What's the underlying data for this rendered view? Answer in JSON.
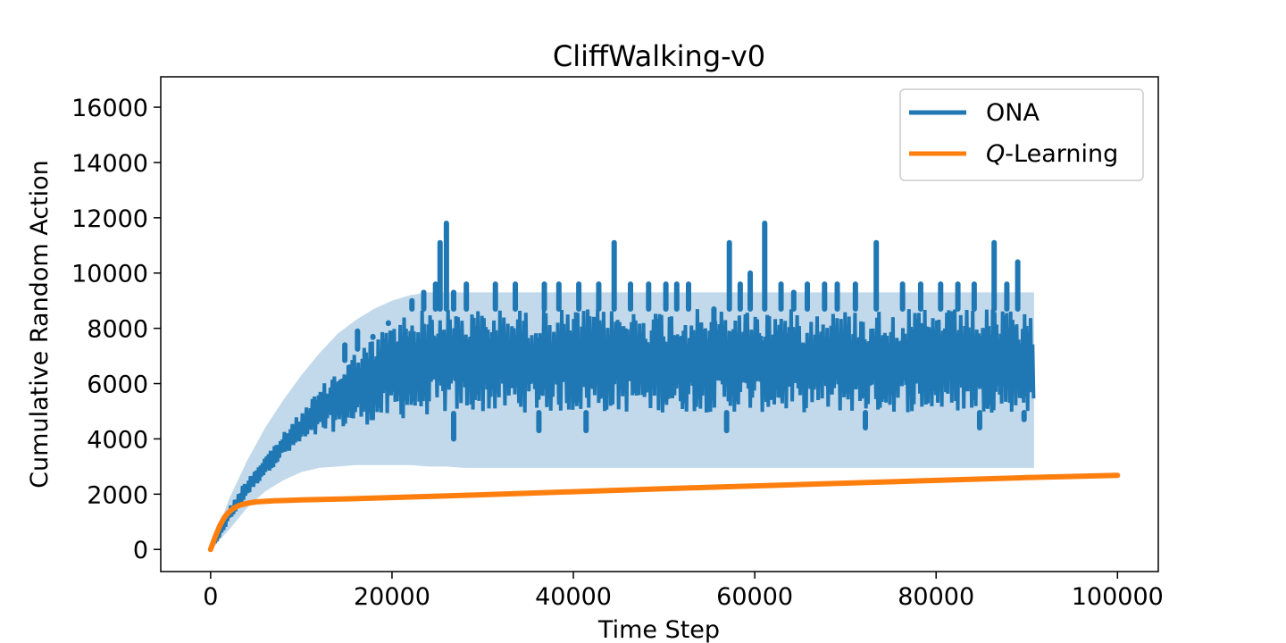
{
  "chart_data": {
    "type": "line",
    "title": "CliffWalking-v0",
    "xlabel": "Time Step",
    "ylabel": "Cumulative Random Action",
    "xlim": [
      -5500,
      104500
    ],
    "ylim": [
      -800,
      17100
    ],
    "xticks": [
      0,
      20000,
      40000,
      60000,
      80000,
      100000
    ],
    "xtick_labels": [
      "0",
      "20000",
      "40000",
      "60000",
      "80000",
      "100000"
    ],
    "yticks": [
      0,
      2000,
      4000,
      6000,
      8000,
      10000,
      12000,
      14000,
      16000
    ],
    "ytick_labels": [
      "0",
      "2000",
      "4000",
      "6000",
      "8000",
      "10000",
      "12000",
      "14000",
      "16000"
    ],
    "grid": false,
    "legend_position": "top-right",
    "series": [
      {
        "name": "ONA",
        "color": "#1f77b4",
        "band_color": "#1f77b4",
        "x": [
          0,
          2000,
          4000,
          6000,
          8000,
          10000,
          12000,
          14000,
          16000,
          18000,
          20000,
          22000,
          24000,
          26000,
          28000,
          30000,
          35000,
          40000,
          45000,
          50000,
          55000,
          60000,
          65000,
          70000,
          75000,
          80000,
          85000,
          90000,
          90800
        ],
        "low": [
          0,
          950,
          1900,
          2700,
          3300,
          3800,
          4100,
          4300,
          4450,
          4550,
          4650,
          4750,
          4850,
          4900,
          4950,
          4950,
          4950,
          4950,
          4950,
          4950,
          4950,
          4950,
          4950,
          4950,
          4950,
          4950,
          4950,
          4950,
          4950
        ],
        "high": [
          0,
          1500,
          2600,
          3400,
          4200,
          5000,
          5800,
          6600,
          7200,
          7700,
          8300,
          8700,
          8700,
          8700,
          8700,
          8700,
          8700,
          8700,
          8700,
          8700,
          8700,
          8700,
          8700,
          8700,
          8700,
          8700,
          8700,
          8700,
          8700
        ],
        "band_low": [
          0,
          700,
          1500,
          2100,
          2500,
          2800,
          2950,
          3000,
          3050,
          3050,
          3050,
          3050,
          3000,
          3000,
          2950,
          2950,
          2950,
          2950,
          2950,
          2950,
          2950,
          2950,
          2950,
          2950,
          2950,
          2950,
          2950,
          2950,
          2950
        ],
        "band_high": [
          0,
          1800,
          3200,
          4400,
          5400,
          6300,
          7100,
          7800,
          8300,
          8700,
          9000,
          9200,
          9300,
          9300,
          9300,
          9300,
          9300,
          9300,
          9300,
          9300,
          9300,
          9300,
          9300,
          9300,
          9300,
          9300,
          9300,
          9300,
          9300
        ],
        "spikes": [
          {
            "x": 14800,
            "y": 7400
          },
          {
            "x": 16200,
            "y": 7900
          },
          {
            "x": 17900,
            "y": 7700
          },
          {
            "x": 19600,
            "y": 8200
          },
          {
            "x": 22200,
            "y": 9000
          },
          {
            "x": 23500,
            "y": 9300
          },
          {
            "x": 24800,
            "y": 9600
          },
          {
            "x": 25300,
            "y": 11100
          },
          {
            "x": 26000,
            "y": 11800
          },
          {
            "x": 26800,
            "y": 9300
          },
          {
            "x": 28200,
            "y": 9600
          },
          {
            "x": 31400,
            "y": 9600
          },
          {
            "x": 33600,
            "y": 9600
          },
          {
            "x": 36800,
            "y": 9600
          },
          {
            "x": 38400,
            "y": 9600
          },
          {
            "x": 40600,
            "y": 9600
          },
          {
            "x": 42800,
            "y": 9600
          },
          {
            "x": 44500,
            "y": 11100
          },
          {
            "x": 46300,
            "y": 9600
          },
          {
            "x": 48300,
            "y": 9600
          },
          {
            "x": 50200,
            "y": 9600
          },
          {
            "x": 51400,
            "y": 9600
          },
          {
            "x": 52700,
            "y": 9600
          },
          {
            "x": 55500,
            "y": 7500
          },
          {
            "x": 57200,
            "y": 11100
          },
          {
            "x": 58400,
            "y": 9600
          },
          {
            "x": 59500,
            "y": 10000
          },
          {
            "x": 61100,
            "y": 11800
          },
          {
            "x": 62900,
            "y": 9600
          },
          {
            "x": 64300,
            "y": 9300
          },
          {
            "x": 65800,
            "y": 9600
          },
          {
            "x": 67700,
            "y": 9600
          },
          {
            "x": 69100,
            "y": 9600
          },
          {
            "x": 71100,
            "y": 9600
          },
          {
            "x": 73400,
            "y": 11100
          },
          {
            "x": 76300,
            "y": 9600
          },
          {
            "x": 78300,
            "y": 9600
          },
          {
            "x": 80500,
            "y": 9600
          },
          {
            "x": 82400,
            "y": 9600
          },
          {
            "x": 84200,
            "y": 9600
          },
          {
            "x": 86400,
            "y": 11100
          },
          {
            "x": 87800,
            "y": 9600
          },
          {
            "x": 89000,
            "y": 10400
          }
        ],
        "dips": [
          {
            "x": 26800,
            "y": 4000
          },
          {
            "x": 36200,
            "y": 4300
          },
          {
            "x": 41400,
            "y": 4300
          },
          {
            "x": 56900,
            "y": 4300
          },
          {
            "x": 72200,
            "y": 4400
          },
          {
            "x": 84800,
            "y": 4400
          },
          {
            "x": 89700,
            "y": 4700
          }
        ]
      },
      {
        "name": "Q-Learning",
        "color": "#ff7f0e",
        "x": [
          0,
          500,
          1000,
          1500,
          2000,
          2500,
          3000,
          3500,
          4000,
          5000,
          6000,
          7000,
          8000,
          10000,
          15000,
          20000,
          30000,
          40000,
          50000,
          60000,
          70000,
          80000,
          90000,
          100000
        ],
        "values": [
          0,
          450,
          850,
          1150,
          1350,
          1480,
          1570,
          1630,
          1670,
          1720,
          1740,
          1760,
          1770,
          1790,
          1830,
          1880,
          1980,
          2090,
          2200,
          2300,
          2400,
          2500,
          2600,
          2680
        ]
      }
    ],
    "legend": [
      {
        "label": "ONA",
        "color": "#1f77b4"
      },
      {
        "label_prefix": "Q",
        "label_suffix": "-Learning",
        "color": "#ff7f0e"
      }
    ]
  }
}
